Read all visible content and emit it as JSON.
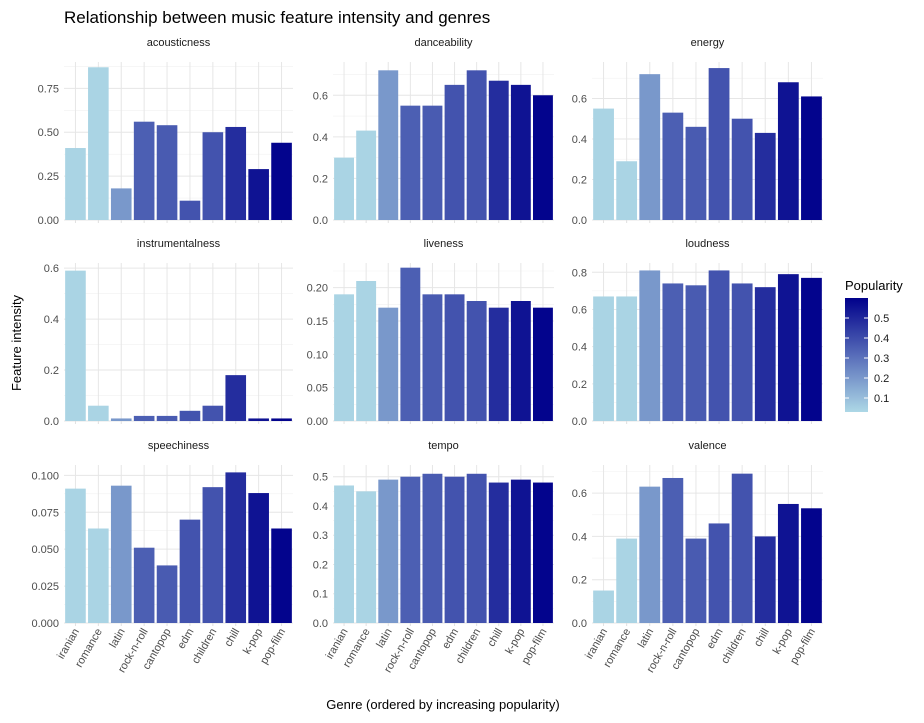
{
  "chart_data": {
    "type": "bar",
    "title": "Relationship between music feature intensity and genres",
    "xlabel": "Genre (ordered by increasing popularity)",
    "ylabel": "Feature intensity",
    "categories": [
      "iranian",
      "romance",
      "latin",
      "rock-n-roll",
      "cantopop",
      "edm",
      "children",
      "chill",
      "k-pop",
      "pop-film"
    ],
    "popularity": [
      0.04,
      0.04,
      0.2,
      0.35,
      0.36,
      0.38,
      0.38,
      0.48,
      0.55,
      0.59
    ],
    "legend": {
      "title": "Popularity",
      "ticks": [
        "0.1",
        "0.2",
        "0.3",
        "0.4",
        "0.5"
      ],
      "tick_values": [
        0.1,
        0.2,
        0.3,
        0.4,
        0.5
      ],
      "range": [
        0.03,
        0.6
      ],
      "low_color": "#ADD8E6",
      "high_color": "#00008B",
      "placement": "right"
    },
    "panels": [
      {
        "name": "acousticness",
        "ylim": [
          0,
          0.9
        ],
        "ticks": [
          0,
          0.25,
          0.5,
          0.75
        ],
        "tick_labels": [
          "0.00",
          "0.25",
          "0.50",
          "0.75"
        ],
        "values": [
          0.41,
          0.87,
          0.18,
          0.56,
          0.54,
          0.11,
          0.5,
          0.53,
          0.29,
          0.44
        ]
      },
      {
        "name": "danceability",
        "ylim": [
          0,
          0.76
        ],
        "ticks": [
          0,
          0.2,
          0.4,
          0.6
        ],
        "tick_labels": [
          "0.0",
          "0.2",
          "0.4",
          "0.6"
        ],
        "values": [
          0.3,
          0.43,
          0.72,
          0.55,
          0.55,
          0.65,
          0.72,
          0.67,
          0.65,
          0.6
        ]
      },
      {
        "name": "energy",
        "ylim": [
          0,
          0.78
        ],
        "ticks": [
          0,
          0.2,
          0.4,
          0.6
        ],
        "tick_labels": [
          "0.0",
          "0.2",
          "0.4",
          "0.6"
        ],
        "values": [
          0.55,
          0.29,
          0.72,
          0.53,
          0.46,
          0.75,
          0.5,
          0.43,
          0.68,
          0.61
        ]
      },
      {
        "name": "instrumentalness",
        "ylim": [
          0,
          0.62
        ],
        "ticks": [
          0,
          0.2,
          0.4,
          0.6
        ],
        "tick_labels": [
          "0.0",
          "0.2",
          "0.4",
          "0.6"
        ],
        "values": [
          0.59,
          0.06,
          0.01,
          0.02,
          0.02,
          0.04,
          0.06,
          0.18,
          0.01,
          0.01
        ]
      },
      {
        "name": "liveness",
        "ylim": [
          0,
          0.237
        ],
        "ticks": [
          0,
          0.05,
          0.1,
          0.15,
          0.2
        ],
        "tick_labels": [
          "0.00",
          "0.05",
          "0.10",
          "0.15",
          "0.20"
        ],
        "values": [
          0.19,
          0.21,
          0.17,
          0.23,
          0.19,
          0.19,
          0.18,
          0.17,
          0.18,
          0.17
        ]
      },
      {
        "name": "loudness",
        "ylim": [
          0,
          0.85
        ],
        "ticks": [
          0,
          0.2,
          0.4,
          0.6,
          0.8
        ],
        "tick_labels": [
          "0.0",
          "0.2",
          "0.4",
          "0.6",
          "0.8"
        ],
        "values": [
          0.67,
          0.67,
          0.81,
          0.74,
          0.73,
          0.81,
          0.74,
          0.72,
          0.79,
          0.77
        ]
      },
      {
        "name": "speechiness",
        "ylim": [
          0,
          0.107
        ],
        "ticks": [
          0,
          0.025,
          0.05,
          0.075,
          0.1
        ],
        "tick_labels": [
          "0.000",
          "0.025",
          "0.050",
          "0.075",
          "0.100"
        ],
        "values": [
          0.091,
          0.064,
          0.093,
          0.051,
          0.039,
          0.07,
          0.092,
          0.102,
          0.088,
          0.064
        ]
      },
      {
        "name": "tempo",
        "ylim": [
          0,
          0.54
        ],
        "ticks": [
          0,
          0.1,
          0.2,
          0.3,
          0.4,
          0.5
        ],
        "tick_labels": [
          "0.0",
          "0.1",
          "0.2",
          "0.3",
          "0.4",
          "0.5"
        ],
        "values": [
          0.47,
          0.45,
          0.49,
          0.5,
          0.51,
          0.5,
          0.51,
          0.48,
          0.49,
          0.48
        ]
      },
      {
        "name": "valence",
        "ylim": [
          0,
          0.73
        ],
        "ticks": [
          0,
          0.2,
          0.4,
          0.6
        ],
        "tick_labels": [
          "0.0",
          "0.2",
          "0.4",
          "0.6"
        ],
        "values": [
          0.15,
          0.39,
          0.63,
          0.67,
          0.39,
          0.46,
          0.69,
          0.4,
          0.55,
          0.53
        ]
      }
    ],
    "grid": true
  }
}
